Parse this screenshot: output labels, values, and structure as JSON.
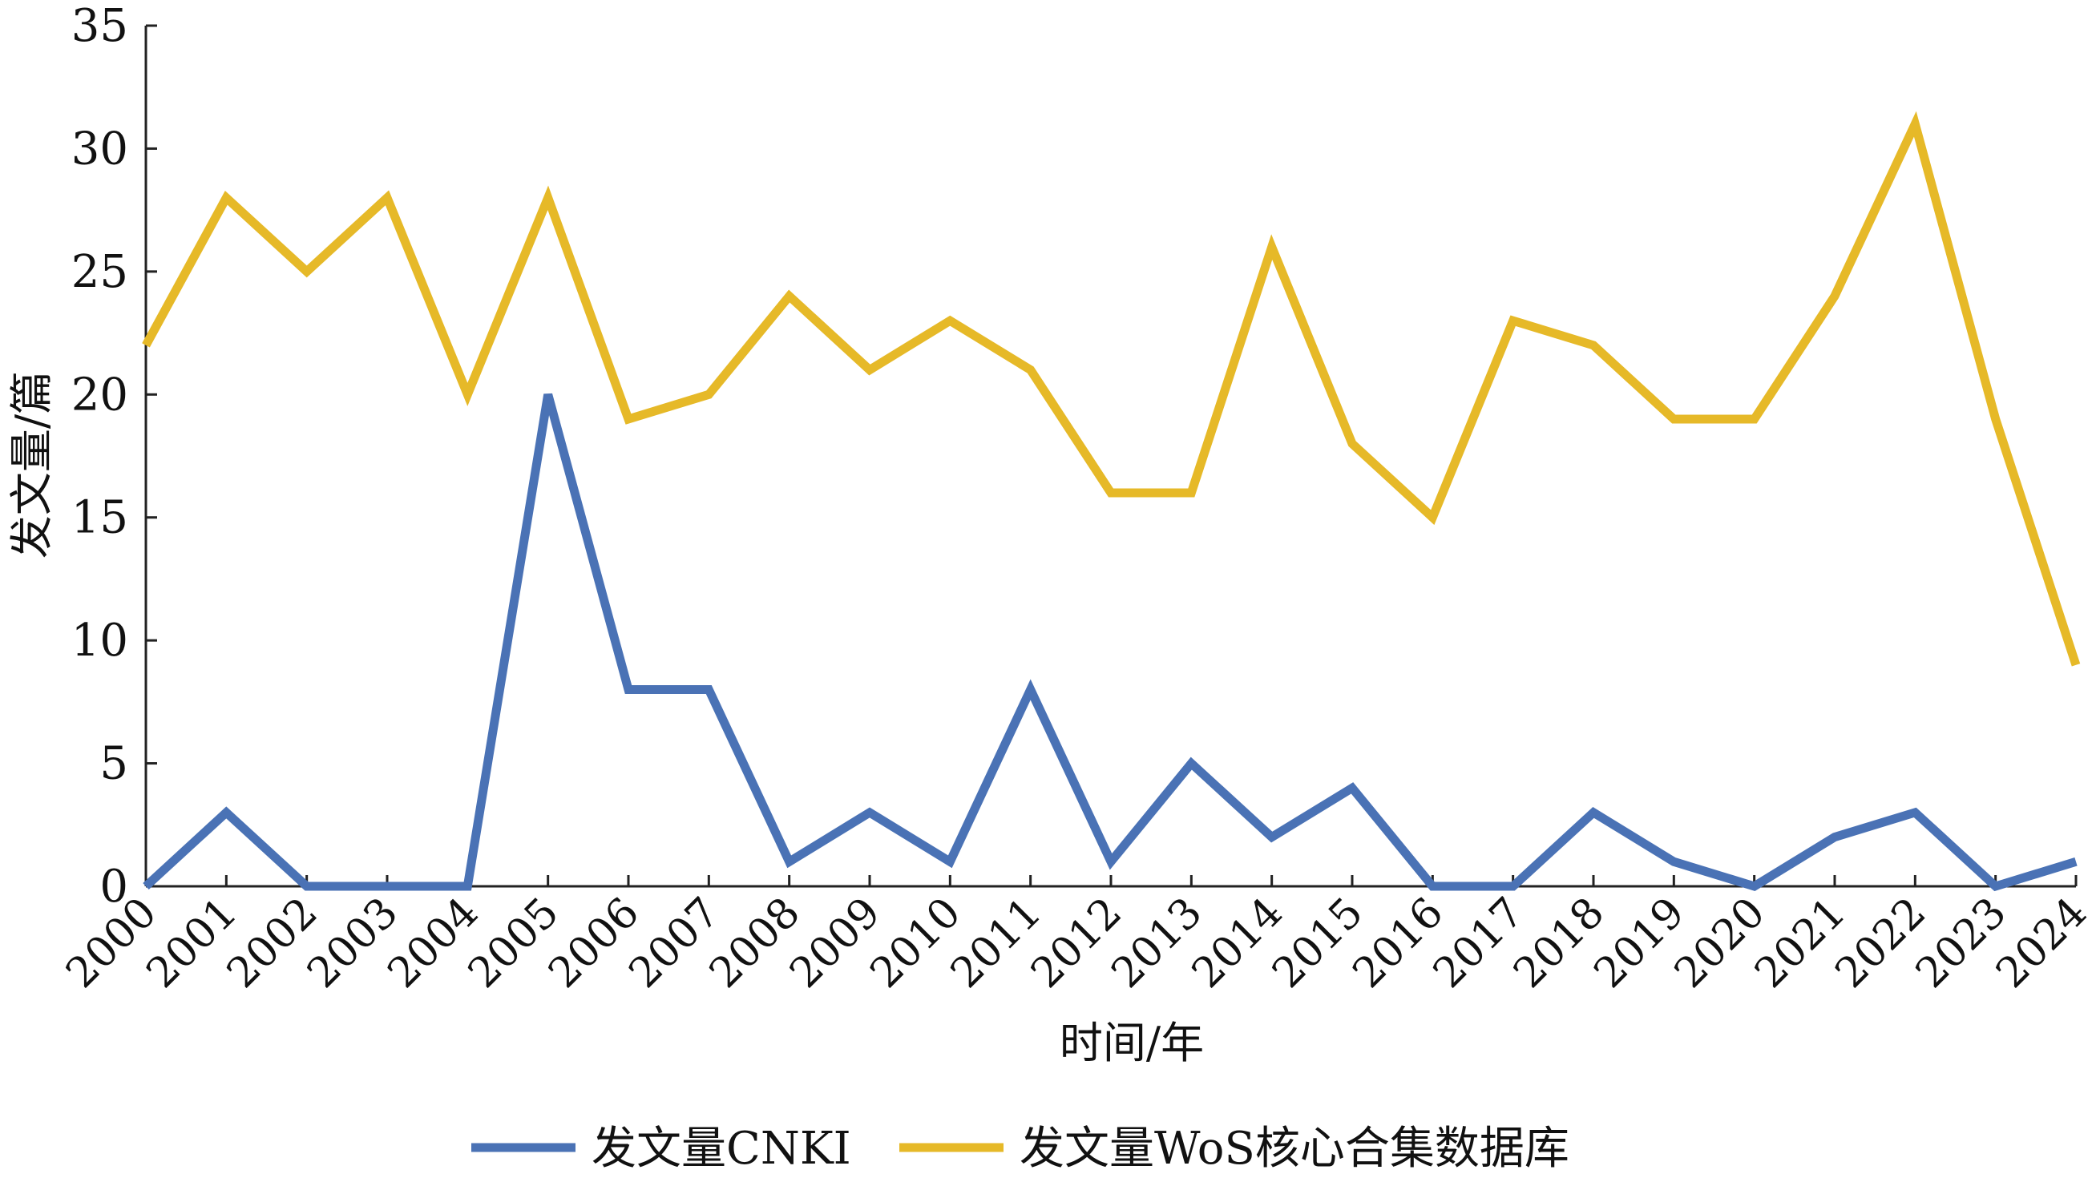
{
  "chart_data": {
    "type": "line",
    "x": [
      "2000",
      "2001",
      "2002",
      "2003",
      "2004",
      "2005",
      "2006",
      "2007",
      "2008",
      "2009",
      "2010",
      "2011",
      "2012",
      "2013",
      "2014",
      "2015",
      "2016",
      "2017",
      "2018",
      "2019",
      "2020",
      "2021",
      "2022",
      "2023",
      "2024"
    ],
    "series": [
      {
        "name": "发文量CNKI",
        "color": "#4a72b5",
        "values": [
          0,
          3,
          0,
          0,
          0,
          20,
          8,
          8,
          1,
          3,
          1,
          8,
          1,
          5,
          2,
          4,
          0,
          0,
          3,
          1,
          0,
          2,
          3,
          0,
          1
        ]
      },
      {
        "name": "发文量WoS核心合集数据库",
        "color": "#e6b928",
        "values": [
          22,
          28,
          25,
          28,
          20,
          28,
          19,
          20,
          24,
          21,
          23,
          21,
          16,
          16,
          26,
          18,
          15,
          23,
          22,
          19,
          19,
          24,
          31,
          19,
          9
        ]
      }
    ],
    "title": "",
    "xlabel": "时间/年",
    "ylabel": "发文量/篇",
    "ylim": [
      0,
      35
    ],
    "yticks": [
      0,
      5,
      10,
      15,
      20,
      25,
      30,
      35
    ],
    "grid": false,
    "legend_position": "bottom"
  }
}
